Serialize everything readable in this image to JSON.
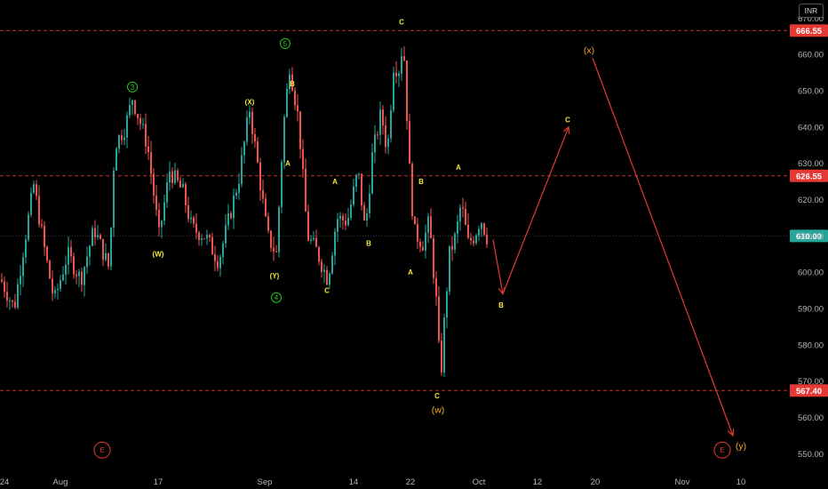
{
  "chart_data": {
    "type": "candlestick",
    "symbol_currency": "INR",
    "y_ticks": [
      550,
      560,
      570,
      580,
      590,
      600,
      610,
      620,
      630,
      640,
      650,
      660,
      670
    ],
    "ylim": [
      547,
      673
    ],
    "x_tick_labels": [
      "24",
      "Aug",
      "17",
      "Sep",
      "14",
      "22",
      "Oct",
      "12",
      "20",
      "Nov",
      "10"
    ],
    "price_levels": [
      {
        "value": "666.55",
        "color": "#e53935",
        "style": "dashed"
      },
      {
        "value": "626.55",
        "color": "#e53935",
        "style": "dashed"
      },
      {
        "value": "567.40",
        "color": "#e53935",
        "style": "dashed"
      }
    ],
    "last_price": {
      "value": "610.00",
      "color": "#26a69a"
    },
    "wave_labels": [
      {
        "text": "3",
        "style": "circled-green",
        "price": 651
      },
      {
        "text": "(W)",
        "style": "yellow",
        "price": 605
      },
      {
        "text": "(X)",
        "style": "yellow",
        "price": 647
      },
      {
        "text": "5",
        "style": "circled-green",
        "price": 663
      },
      {
        "text": "B",
        "style": "yellow",
        "price": 652
      },
      {
        "text": "A",
        "style": "yellow",
        "price": 630
      },
      {
        "text": "(Y)",
        "style": "yellow",
        "price": 599
      },
      {
        "text": "4",
        "style": "circled-green",
        "price": 593
      },
      {
        "text": "A",
        "style": "yellow",
        "price": 625
      },
      {
        "text": "C",
        "style": "yellow",
        "price": 595
      },
      {
        "text": "B",
        "style": "yellow",
        "price": 608
      },
      {
        "text": "C",
        "style": "yellow",
        "price": 669
      },
      {
        "text": "B",
        "style": "yellow",
        "price": 625
      },
      {
        "text": "A",
        "style": "yellow",
        "price": 600
      },
      {
        "text": "C",
        "style": "yellow",
        "price": 566
      },
      {
        "text": "(w)",
        "style": "orange",
        "price": 562
      },
      {
        "text": "A",
        "style": "yellow",
        "price": 629
      },
      {
        "text": "B",
        "style": "yellow",
        "price": 591
      },
      {
        "text": "C",
        "style": "yellow",
        "price": 642
      },
      {
        "text": "(x)",
        "style": "orange",
        "price": 661
      },
      {
        "text": "(y)",
        "style": "orange",
        "price": 552
      },
      {
        "text": "E",
        "style": "circled-red",
        "price": 551
      },
      {
        "text": "E",
        "style": "circled-red",
        "price": 551
      }
    ],
    "projection_path": [
      {
        "date": "Oct 3",
        "price": 609
      },
      {
        "date": "Oct 6",
        "price": 594
      },
      {
        "date": "Oct 16",
        "price": 640
      },
      {
        "date": "Oct 20",
        "price": 659
      },
      {
        "date": "Nov 10",
        "price": 555
      }
    ],
    "up_color": "#26a69a",
    "down_color": "#ef5350"
  }
}
